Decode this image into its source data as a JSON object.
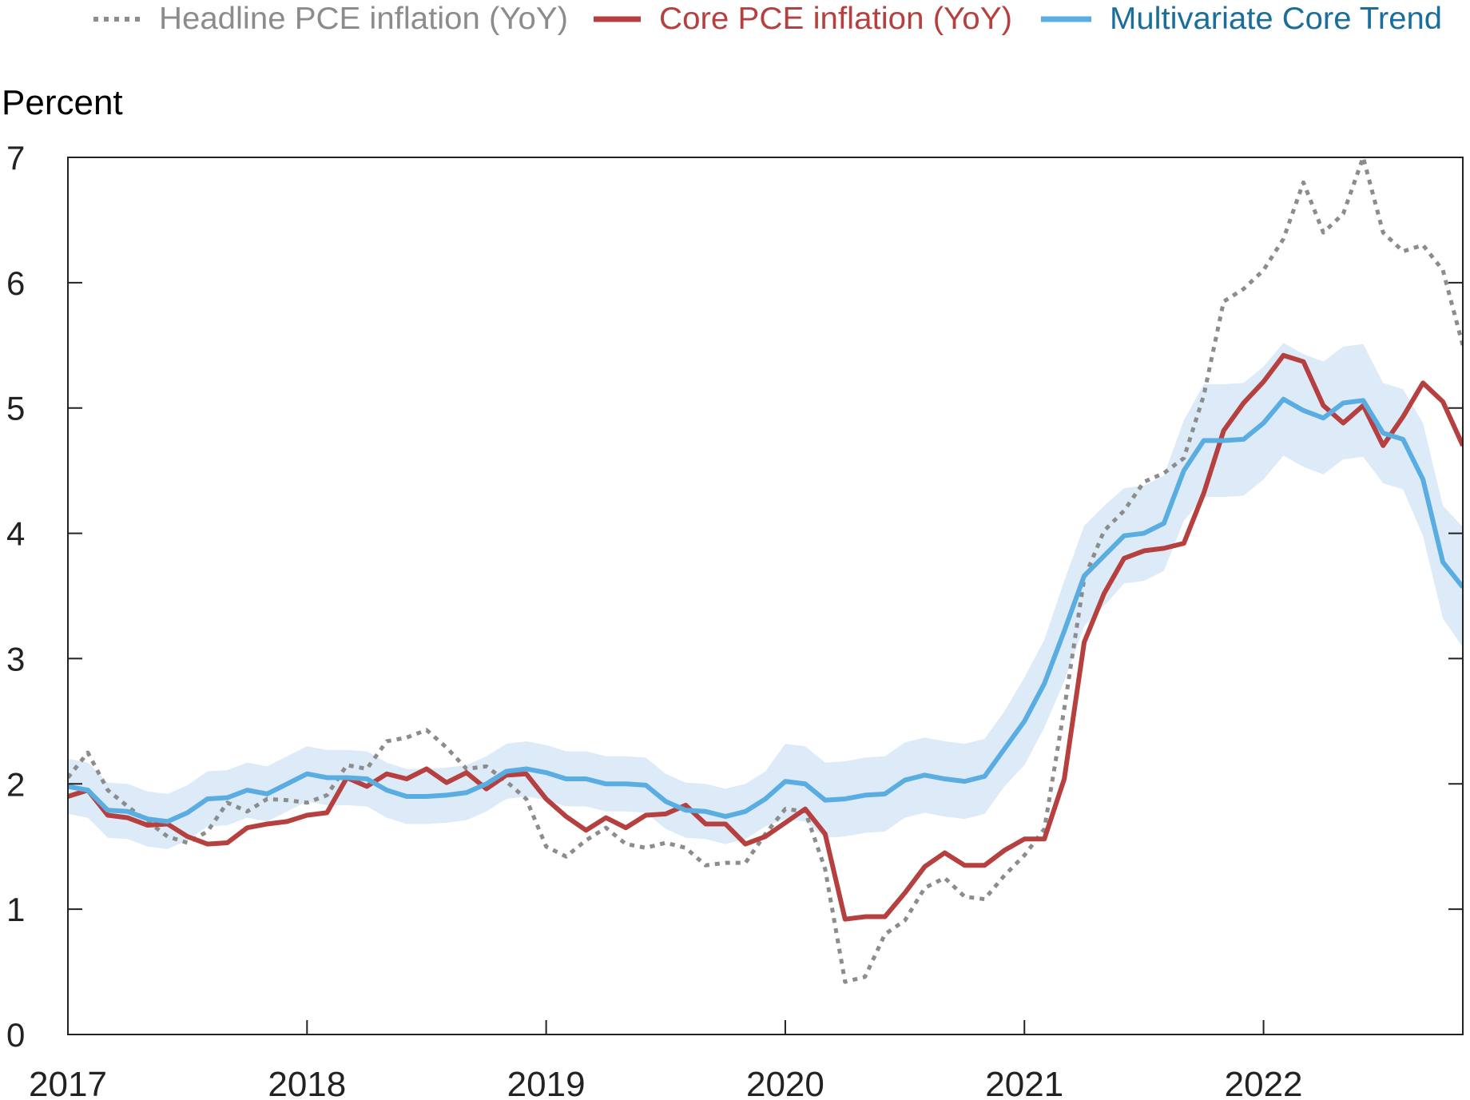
{
  "chart_data": {
    "type": "line",
    "ylabel": "Percent",
    "ylim": [
      0,
      7
    ],
    "y_ticks": [
      "0",
      "1",
      "2",
      "3",
      "4",
      "5",
      "6",
      "7"
    ],
    "x_ticks": [
      "2017",
      "2018",
      "2019",
      "2020",
      "2021",
      "2022"
    ],
    "x_range": [
      "2017-01",
      "2022-11"
    ],
    "x_frequency": "monthly",
    "grid": false,
    "legend_position": "top",
    "colors": {
      "headline": "#8c8c8c",
      "core": "#b5403f",
      "trend": "#5aade0",
      "band": "#dcebf7",
      "trend_label": "#1a6e9e"
    },
    "series": [
      {
        "name": "Headline PCE inflation (YoY)",
        "style": "dotted",
        "values": [
          2.05,
          2.25,
          1.95,
          1.82,
          1.7,
          1.58,
          1.53,
          1.62,
          1.85,
          1.78,
          1.88,
          1.87,
          1.85,
          1.91,
          2.15,
          2.12,
          2.34,
          2.37,
          2.43,
          2.29,
          2.12,
          2.14,
          2.02,
          1.88,
          1.5,
          1.42,
          1.55,
          1.65,
          1.52,
          1.49,
          1.53,
          1.49,
          1.35,
          1.37,
          1.37,
          1.6,
          1.8,
          1.78,
          1.32,
          0.42,
          0.46,
          0.8,
          0.91,
          1.17,
          1.25,
          1.1,
          1.08,
          1.27,
          1.43,
          1.64,
          2.6,
          3.64,
          4.02,
          4.18,
          4.41,
          4.48,
          4.6,
          5.1,
          5.85,
          5.95,
          6.1,
          6.35,
          6.8,
          6.4,
          6.55,
          7.0,
          6.4,
          6.25,
          6.3,
          6.1,
          5.5
        ]
      },
      {
        "name": "Core PCE inflation (YoY)",
        "style": "solid",
        "values": [
          1.9,
          1.95,
          1.75,
          1.73,
          1.67,
          1.68,
          1.58,
          1.52,
          1.53,
          1.65,
          1.68,
          1.7,
          1.75,
          1.77,
          2.05,
          1.98,
          2.08,
          2.04,
          2.12,
          2.01,
          2.09,
          1.96,
          2.07,
          2.08,
          1.88,
          1.74,
          1.63,
          1.73,
          1.65,
          1.75,
          1.76,
          1.83,
          1.68,
          1.68,
          1.52,
          1.58,
          1.69,
          1.8,
          1.6,
          0.92,
          0.94,
          0.94,
          1.13,
          1.34,
          1.45,
          1.35,
          1.35,
          1.47,
          1.56,
          1.56,
          2.04,
          3.13,
          3.52,
          3.8,
          3.86,
          3.88,
          3.92,
          4.32,
          4.82,
          5.04,
          5.21,
          5.42,
          5.37,
          5.02,
          4.88,
          5.02,
          4.7,
          4.93,
          5.2,
          5.05,
          4.7
        ]
      },
      {
        "name": "Multivariate Core Trend",
        "style": "solid",
        "values": [
          1.98,
          1.95,
          1.79,
          1.78,
          1.72,
          1.7,
          1.77,
          1.88,
          1.89,
          1.95,
          1.92,
          2.0,
          2.08,
          2.05,
          2.05,
          2.04,
          1.95,
          1.9,
          1.9,
          1.91,
          1.93,
          2.0,
          2.1,
          2.12,
          2.09,
          2.04,
          2.04,
          2.0,
          2.0,
          1.99,
          1.86,
          1.79,
          1.78,
          1.74,
          1.78,
          1.88,
          2.02,
          2.0,
          1.87,
          1.88,
          1.91,
          1.92,
          2.03,
          2.07,
          2.04,
          2.02,
          2.06,
          2.28,
          2.5,
          2.8,
          3.22,
          3.66,
          3.82,
          3.98,
          4.0,
          4.08,
          4.5,
          4.74,
          4.74,
          4.75,
          4.88,
          5.07,
          4.98,
          4.92,
          5.04,
          5.06,
          4.8,
          4.75,
          4.43,
          3.77,
          3.57
        ],
        "band_upper": [
          2.2,
          2.17,
          2.01,
          2.0,
          1.94,
          1.92,
          1.99,
          2.1,
          2.11,
          2.17,
          2.14,
          2.22,
          2.3,
          2.27,
          2.27,
          2.26,
          2.17,
          2.12,
          2.12,
          2.13,
          2.15,
          2.22,
          2.32,
          2.34,
          2.31,
          2.26,
          2.26,
          2.22,
          2.22,
          2.21,
          2.08,
          2.01,
          2.0,
          1.96,
          2.0,
          2.1,
          2.32,
          2.3,
          2.17,
          2.18,
          2.21,
          2.22,
          2.33,
          2.37,
          2.34,
          2.32,
          2.36,
          2.58,
          2.85,
          3.15,
          3.62,
          4.06,
          4.22,
          4.36,
          4.38,
          4.46,
          4.9,
          5.19,
          5.19,
          5.2,
          5.33,
          5.52,
          5.43,
          5.37,
          5.49,
          5.51,
          5.2,
          5.15,
          4.88,
          4.22,
          4.05
        ],
        "band_lower": [
          1.76,
          1.73,
          1.57,
          1.56,
          1.5,
          1.48,
          1.55,
          1.66,
          1.67,
          1.73,
          1.7,
          1.78,
          1.86,
          1.83,
          1.83,
          1.82,
          1.73,
          1.68,
          1.68,
          1.69,
          1.71,
          1.78,
          1.88,
          1.9,
          1.87,
          1.82,
          1.82,
          1.78,
          1.78,
          1.77,
          1.64,
          1.57,
          1.56,
          1.52,
          1.56,
          1.66,
          1.72,
          1.7,
          1.57,
          1.58,
          1.61,
          1.62,
          1.73,
          1.77,
          1.74,
          1.72,
          1.76,
          1.98,
          2.15,
          2.45,
          2.82,
          3.26,
          3.42,
          3.6,
          3.62,
          3.7,
          4.1,
          4.29,
          4.29,
          4.3,
          4.43,
          4.62,
          4.53,
          4.47,
          4.59,
          4.61,
          4.4,
          4.35,
          3.98,
          3.32,
          3.09
        ]
      }
    ]
  }
}
